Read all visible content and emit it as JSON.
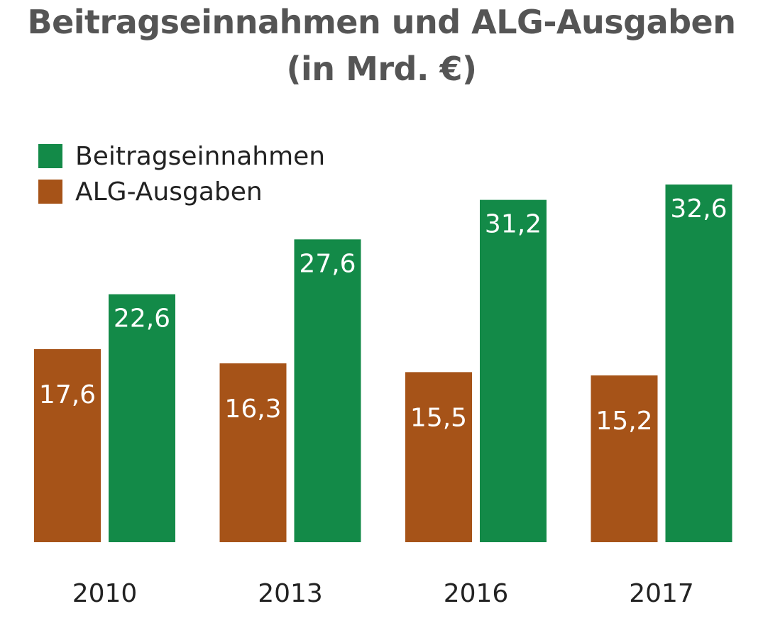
{
  "chart_data": {
    "type": "bar",
    "title": "Beitragseinnahmen und ALG-Ausgaben",
    "subtitle": "(in Mrd. €)",
    "categories": [
      "2010",
      "2013",
      "2016",
      "2017"
    ],
    "series": [
      {
        "name": "ALG-Ausgaben",
        "color": "#a65318",
        "values": [
          17.6,
          16.3,
          15.5,
          15.2
        ],
        "labels": [
          "17,6",
          "16,3",
          "15,5",
          "15,2"
        ]
      },
      {
        "name": "Beitragseinnahmen",
        "color": "#138a48",
        "values": [
          22.6,
          27.6,
          31.2,
          32.6
        ],
        "labels": [
          "22,6",
          "27,6",
          "31,2",
          "32,6"
        ]
      }
    ],
    "legend": {
      "placement": "top-left",
      "order": [
        "Beitragseinnahmen",
        "ALG-Ausgaben"
      ]
    },
    "xlabel": "",
    "ylabel": "",
    "grid": false,
    "axis_visible": false,
    "ylim": [
      0,
      32.6
    ]
  }
}
